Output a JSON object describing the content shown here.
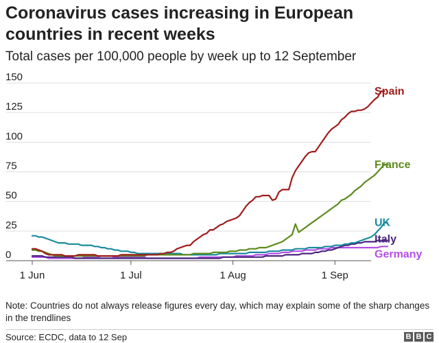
{
  "title": "Coronavirus cases increasing in European countries in recent weeks",
  "subtitle": "Total cases per 100,000 people by week up to 12 September",
  "note": "Note: Countries do not always release figures every day, which may explain some of the sharp changes in the trendlines",
  "source": "Source: ECDC, data to 12 Sep",
  "logo": [
    "B",
    "B",
    "C"
  ],
  "chart_data": {
    "type": "line",
    "x_start": "2020-06-01",
    "x_step_days": 1,
    "xlim": [
      "2020-06-01",
      "2020-09-12"
    ],
    "ylim": [
      0,
      150
    ],
    "yticks": [
      0,
      25,
      50,
      75,
      100,
      125,
      150
    ],
    "xticks": [
      {
        "label": "1 Jun",
        "date": "2020-06-01"
      },
      {
        "label": "1 Jul",
        "date": "2020-07-01"
      },
      {
        "label": "1 Aug",
        "date": "2020-08-01"
      },
      {
        "label": "1 Sep",
        "date": "2020-09-01"
      }
    ],
    "grid": "horizontal",
    "legend": "labels at line ends",
    "series": [
      {
        "name": "Spain",
        "color": "#a01b1b",
        "values": [
          10,
          10,
          9,
          8,
          6,
          5,
          5,
          5,
          5,
          5,
          4,
          4,
          4,
          4,
          5,
          5,
          5,
          5,
          5,
          5,
          4,
          4,
          4,
          4,
          4,
          4,
          4,
          5,
          5,
          5,
          5,
          5,
          5,
          5,
          5,
          5,
          5,
          5,
          5,
          6,
          6,
          7,
          7,
          8,
          10,
          11,
          12,
          13,
          13,
          16,
          18,
          20,
          22,
          23,
          26,
          26,
          28,
          30,
          31,
          33,
          34,
          35,
          36,
          38,
          42,
          46,
          49,
          51,
          54,
          54,
          55,
          55,
          55,
          51,
          52,
          58,
          60,
          60,
          60,
          70,
          76,
          80,
          84,
          88,
          91,
          92,
          92,
          96,
          100,
          104,
          108,
          111,
          113,
          115,
          119,
          121,
          124,
          126,
          126,
          127,
          127,
          128,
          130,
          133,
          136,
          138,
          143,
          143
        ]
      },
      {
        "name": "France",
        "color": "#5c8a1c",
        "values": [
          9,
          9,
          8,
          8,
          7,
          6,
          5,
          4,
          4,
          4,
          4,
          4,
          4,
          4,
          4,
          4,
          4,
          4,
          4,
          4,
          4,
          4,
          4,
          4,
          4,
          4,
          4,
          4,
          4,
          4,
          4,
          4,
          4,
          4,
          4,
          5,
          5,
          5,
          5,
          5,
          5,
          5,
          5,
          5,
          5,
          5,
          5,
          5,
          5,
          6,
          6,
          6,
          6,
          6,
          6,
          7,
          7,
          7,
          7,
          7,
          8,
          8,
          8,
          9,
          9,
          9,
          10,
          10,
          10,
          11,
          11,
          11,
          12,
          13,
          14,
          15,
          16,
          18,
          20,
          22,
          31,
          24,
          26,
          28,
          30,
          32,
          34,
          36,
          38,
          40,
          42,
          44,
          46,
          48,
          51,
          52,
          54,
          56,
          59,
          61,
          63,
          66,
          68,
          70,
          72,
          75,
          78,
          81,
          81
        ]
      },
      {
        "name": "UK",
        "color": "#1a8a9e",
        "values": [
          21,
          21,
          20,
          20,
          19,
          18,
          17,
          16,
          15,
          15,
          15,
          14,
          14,
          14,
          14,
          13,
          13,
          13,
          13,
          12,
          12,
          11,
          11,
          10,
          10,
          9,
          9,
          8,
          8,
          8,
          7,
          7,
          6,
          6,
          6,
          6,
          6,
          6,
          6,
          6,
          6,
          6,
          6,
          6,
          6,
          6,
          5,
          5,
          5,
          5,
          5,
          5,
          5,
          5,
          5,
          5,
          5,
          6,
          6,
          6,
          6,
          6,
          6,
          6,
          6,
          6,
          7,
          7,
          7,
          7,
          7,
          7,
          8,
          8,
          8,
          8,
          9,
          9,
          9,
          9,
          10,
          10,
          10,
          10,
          11,
          11,
          11,
          11,
          11,
          12,
          12,
          12,
          13,
          13,
          13,
          14,
          14,
          15,
          15,
          16,
          17,
          18,
          19,
          20,
          22,
          25,
          28,
          32,
          32
        ]
      },
      {
        "name": "Italy",
        "color": "#4b2580",
        "values": [
          4,
          4,
          4,
          4,
          3,
          3,
          3,
          3,
          3,
          3,
          3,
          3,
          3,
          2,
          2,
          2,
          2,
          2,
          2,
          2,
          2,
          2,
          2,
          2,
          2,
          2,
          2,
          2,
          2,
          2,
          2,
          2,
          2,
          2,
          2,
          2,
          2,
          2,
          2,
          2,
          2,
          2,
          2,
          2,
          2,
          2,
          2,
          2,
          2,
          2,
          2,
          2,
          2,
          2,
          2,
          2,
          2,
          2,
          3,
          3,
          3,
          3,
          3,
          3,
          3,
          3,
          3,
          3,
          3,
          3,
          3,
          4,
          4,
          4,
          4,
          4,
          4,
          5,
          5,
          5,
          5,
          5,
          6,
          6,
          6,
          6,
          7,
          7,
          8,
          8,
          9,
          9,
          10,
          11,
          12,
          13,
          13,
          14,
          14,
          15,
          15,
          16,
          16,
          16,
          16,
          17,
          17,
          17,
          17
        ]
      },
      {
        "name": "Germany",
        "color": "#b44ee8",
        "values": [
          3,
          3,
          3,
          3,
          3,
          2,
          2,
          2,
          2,
          2,
          2,
          2,
          2,
          2,
          2,
          2,
          3,
          3,
          3,
          3,
          3,
          4,
          4,
          4,
          4,
          3,
          3,
          3,
          3,
          3,
          3,
          3,
          3,
          3,
          3,
          2,
          2,
          2,
          2,
          2,
          2,
          2,
          2,
          2,
          2,
          2,
          2,
          2,
          2,
          2,
          2,
          3,
          3,
          3,
          3,
          3,
          3,
          3,
          3,
          3,
          3,
          3,
          4,
          4,
          4,
          4,
          4,
          4,
          5,
          5,
          5,
          5,
          6,
          6,
          6,
          6,
          7,
          7,
          7,
          8,
          8,
          8,
          8,
          9,
          9,
          9,
          9,
          10,
          10,
          10,
          10,
          11,
          11,
          11,
          11,
          11,
          11,
          11,
          11,
          11,
          11,
          11,
          11,
          11,
          11,
          11,
          12,
          12,
          12
        ]
      }
    ]
  }
}
